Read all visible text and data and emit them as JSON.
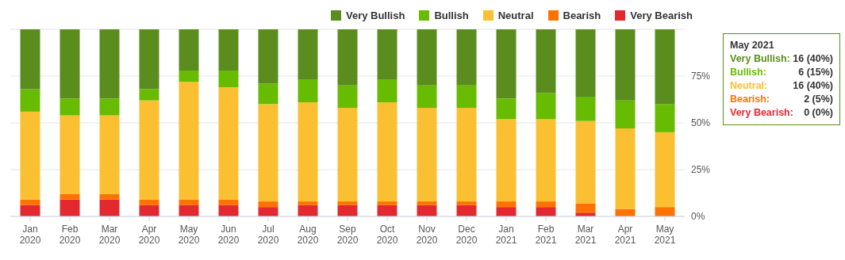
{
  "chart_data": {
    "type": "bar",
    "stacked": true,
    "categories": [
      "Jan 2020",
      "Feb 2020",
      "Mar 2020",
      "Apr 2020",
      "May 2020",
      "Jun 2020",
      "Jul 2020",
      "Aug 2020",
      "Sep 2020",
      "Oct 2020",
      "Nov 2020",
      "Dec 2020",
      "Jan 2021",
      "Feb 2021",
      "Mar 2021",
      "Apr 2021",
      "May 2021"
    ],
    "series": [
      {
        "name": "Very Bearish",
        "color": "#e3282f",
        "values": [
          6,
          9,
          9,
          6,
          6,
          6,
          5,
          6,
          6,
          6,
          6,
          6,
          5,
          5,
          2,
          0,
          0
        ]
      },
      {
        "name": "Bearish",
        "color": "#ff7200",
        "values": [
          3,
          3,
          3,
          3,
          3,
          3,
          3,
          2,
          2,
          2,
          2,
          2,
          3,
          3,
          5,
          4,
          5
        ]
      },
      {
        "name": "Neutral",
        "color": "#fbbf32",
        "values": [
          47,
          42,
          42,
          53,
          63,
          60,
          52,
          53,
          50,
          53,
          50,
          50,
          44,
          44,
          44,
          43,
          40
        ]
      },
      {
        "name": "Bullish",
        "color": "#67bb00",
        "values": [
          12,
          9,
          9,
          6,
          6,
          9,
          11,
          12,
          12,
          12,
          12,
          12,
          11,
          14,
          13,
          15,
          15
        ]
      },
      {
        "name": "Very Bullish",
        "color": "#5b8c1e",
        "values": [
          32,
          37,
          37,
          32,
          22,
          22,
          29,
          27,
          30,
          27,
          30,
          30,
          37,
          34,
          36,
          38,
          40
        ]
      }
    ],
    "ylim": [
      0,
      100
    ],
    "yticks": [
      {
        "value": 0,
        "label": "0%"
      },
      {
        "value": 25,
        "label": "25%"
      },
      {
        "value": 50,
        "label": "50%"
      },
      {
        "value": 75,
        "label": "75%"
      },
      {
        "value": 100,
        "label": null
      }
    ],
    "grid": "y",
    "legend": "top right",
    "annotations": [
      "May 2021",
      "Very Bullish:  16 (40%)",
      "Bullish:  6 (15%)",
      "Neutral:  16 (40%)",
      "Bearish:  2 (5%)",
      "Very Bearish:  0 (0%)"
    ]
  }
}
